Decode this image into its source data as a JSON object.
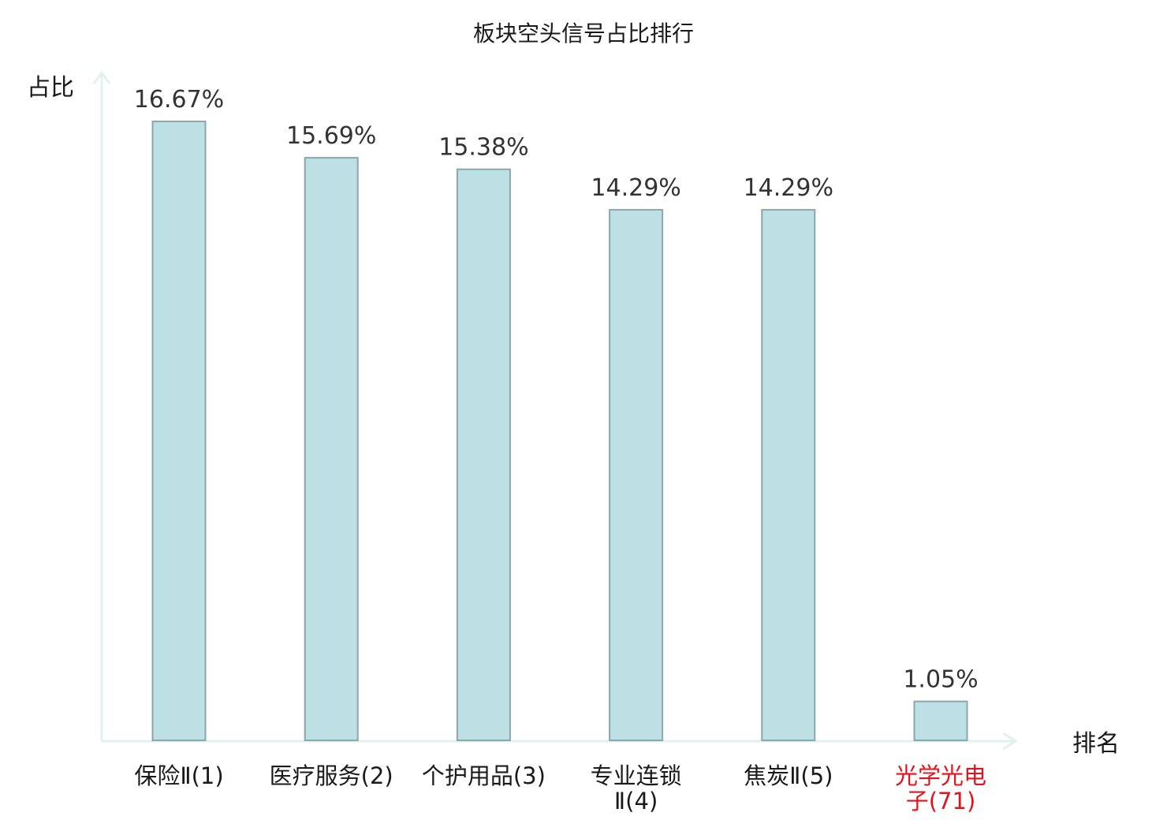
{
  "chart_data": {
    "type": "bar",
    "title": "板块空头信号占比排行",
    "ylabel": "占比",
    "xlabel": "排名",
    "categories": [
      [
        "保险Ⅱ(1)"
      ],
      [
        "医疗服务(2)"
      ],
      [
        "个护用品(3)"
      ],
      [
        "专业连锁",
        "Ⅱ(4)"
      ],
      [
        "焦炭Ⅱ(5)"
      ],
      [
        "光学光电",
        "子(71)"
      ]
    ],
    "values": [
      16.67,
      15.69,
      15.38,
      14.29,
      14.29,
      1.05
    ],
    "value_labels": [
      "16.67%",
      "15.69%",
      "15.38%",
      "14.29%",
      "14.29%",
      "1.05%"
    ],
    "highlight_index": 5,
    "ylim": [
      0,
      16.67
    ],
    "grid": false,
    "colors": {
      "bar_fill": "#bce0e3",
      "bar_stroke": "#8aa7a9",
      "axis": "#e0f2f0",
      "text": "#1a1a1a",
      "value_text": "#333333",
      "highlight_text": "#e0141e"
    }
  }
}
